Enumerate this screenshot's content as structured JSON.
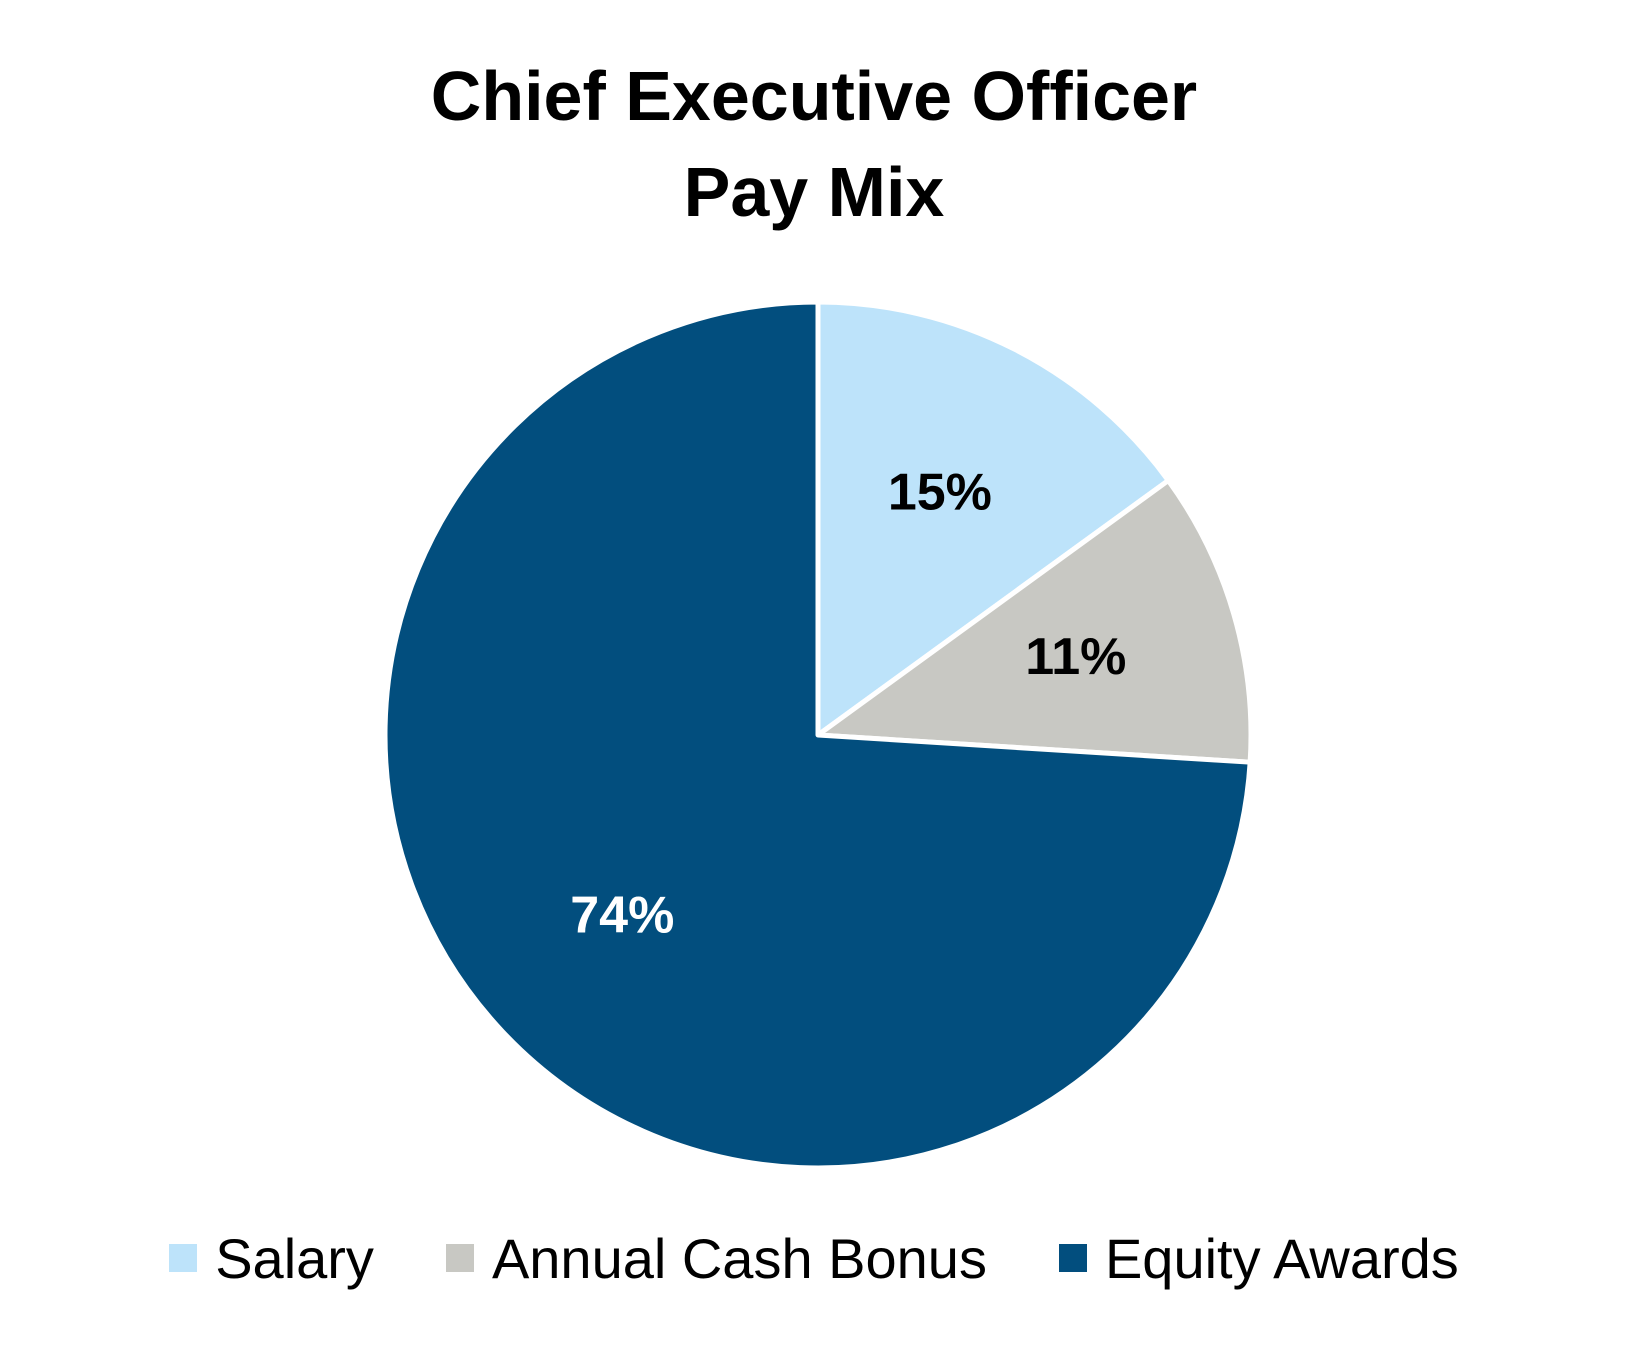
{
  "chart_data": {
    "type": "pie",
    "title_lines": [
      "Chief Executive Officer",
      "Pay Mix"
    ],
    "slices": [
      {
        "label": "Salary",
        "value": 15,
        "display": "15%",
        "color": "#BDE3FA",
        "label_color": "#000000"
      },
      {
        "label": "Annual Cash Bonus",
        "value": 11,
        "display": "11%",
        "color": "#C8C8C3",
        "label_color": "#000000"
      },
      {
        "label": "Equity Awards",
        "value": 74,
        "display": "74%",
        "color": "#024E7E",
        "label_color": "#FFFFFF"
      }
    ],
    "start_angle": "12 o'clock",
    "direction": "clockwise",
    "legend_position": "bottom"
  }
}
